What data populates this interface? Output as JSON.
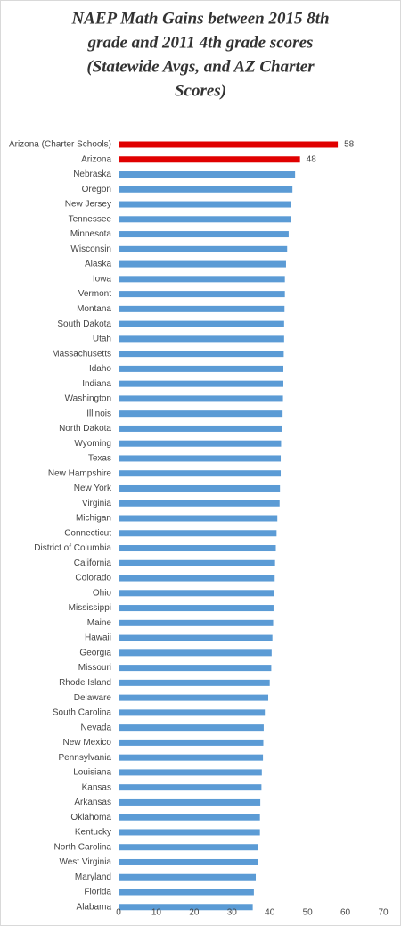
{
  "chart_data": {
    "type": "hbar",
    "title": [
      "NAEP Math Gains between 2015 8th",
      "grade and 2011 4th grade scores",
      "(Statewide Avgs, and AZ Charter",
      "Scores)"
    ],
    "categories": [
      "Arizona (Charter Schools)",
      "Arizona",
      "Nebraska",
      "Oregon",
      "New Jersey",
      "Tennessee",
      "Minnesota",
      "Wisconsin",
      "Alaska",
      "Iowa",
      "Vermont",
      "Montana",
      "South Dakota",
      "Utah",
      "Massachusetts",
      "Idaho",
      "Indiana",
      "Washington",
      "Illinois",
      "North Dakota",
      "Wyoming",
      "Texas",
      "New Hampshire",
      "New York",
      "Virginia",
      "Michigan",
      "Connecticut",
      "District of Columbia",
      "California",
      "Colorado",
      "Ohio",
      "Mississippi",
      "Maine",
      "Hawaii",
      "Georgia",
      "Missouri",
      "Rhode Island",
      "Delaware",
      "South Carolina",
      "Nevada",
      "New Mexico",
      "Pennsylvania",
      "Louisiana",
      "Kansas",
      "Arkansas",
      "Oklahoma",
      "Kentucky",
      "North Carolina",
      "West Virginia",
      "Maryland",
      "Florida",
      "Alabama"
    ],
    "values": [
      58,
      48,
      46.7,
      46,
      45.5,
      45.5,
      45,
      44.6,
      44.3,
      44,
      44,
      43.9,
      43.8,
      43.8,
      43.7,
      43.6,
      43.6,
      43.5,
      43.4,
      43.3,
      43,
      42.9,
      42.9,
      42.7,
      42.6,
      42,
      41.8,
      41.6,
      41.4,
      41.3,
      41.1,
      41,
      40.9,
      40.7,
      40.5,
      40.4,
      40,
      39.6,
      38.7,
      38.4,
      38.3,
      38.2,
      37.9,
      37.8,
      37.5,
      37.4,
      37.4,
      37,
      36.9,
      36.3,
      35.8,
      35.5
    ],
    "value_labels": [
      "58",
      "48",
      null,
      null,
      null,
      null,
      null,
      null,
      null,
      null,
      null,
      null,
      null,
      null,
      null,
      null,
      null,
      null,
      null,
      null,
      null,
      null,
      null,
      null,
      null,
      null,
      null,
      null,
      null,
      null,
      null,
      null,
      null,
      null,
      null,
      null,
      null,
      null,
      null,
      null,
      null,
      null,
      null,
      null,
      null,
      null,
      null,
      null,
      null,
      null,
      null,
      null
    ],
    "colors": [
      "#e00000",
      "#e00000",
      "#5b9bd5",
      "#5b9bd5",
      "#5b9bd5",
      "#5b9bd5",
      "#5b9bd5",
      "#5b9bd5",
      "#5b9bd5",
      "#5b9bd5",
      "#5b9bd5",
      "#5b9bd5",
      "#5b9bd5",
      "#5b9bd5",
      "#5b9bd5",
      "#5b9bd5",
      "#5b9bd5",
      "#5b9bd5",
      "#5b9bd5",
      "#5b9bd5",
      "#5b9bd5",
      "#5b9bd5",
      "#5b9bd5",
      "#5b9bd5",
      "#5b9bd5",
      "#5b9bd5",
      "#5b9bd5",
      "#5b9bd5",
      "#5b9bd5",
      "#5b9bd5",
      "#5b9bd5",
      "#5b9bd5",
      "#5b9bd5",
      "#5b9bd5",
      "#5b9bd5",
      "#5b9bd5",
      "#5b9bd5",
      "#5b9bd5",
      "#5b9bd5",
      "#5b9bd5",
      "#5b9bd5",
      "#5b9bd5",
      "#5b9bd5",
      "#5b9bd5",
      "#5b9bd5",
      "#5b9bd5",
      "#5b9bd5",
      "#5b9bd5",
      "#5b9bd5",
      "#5b9bd5",
      "#5b9bd5",
      "#5b9bd5"
    ],
    "xlim": [
      0,
      70
    ],
    "xticks": [
      0,
      10,
      20,
      30,
      40,
      50,
      60,
      70
    ],
    "grid": false
  }
}
